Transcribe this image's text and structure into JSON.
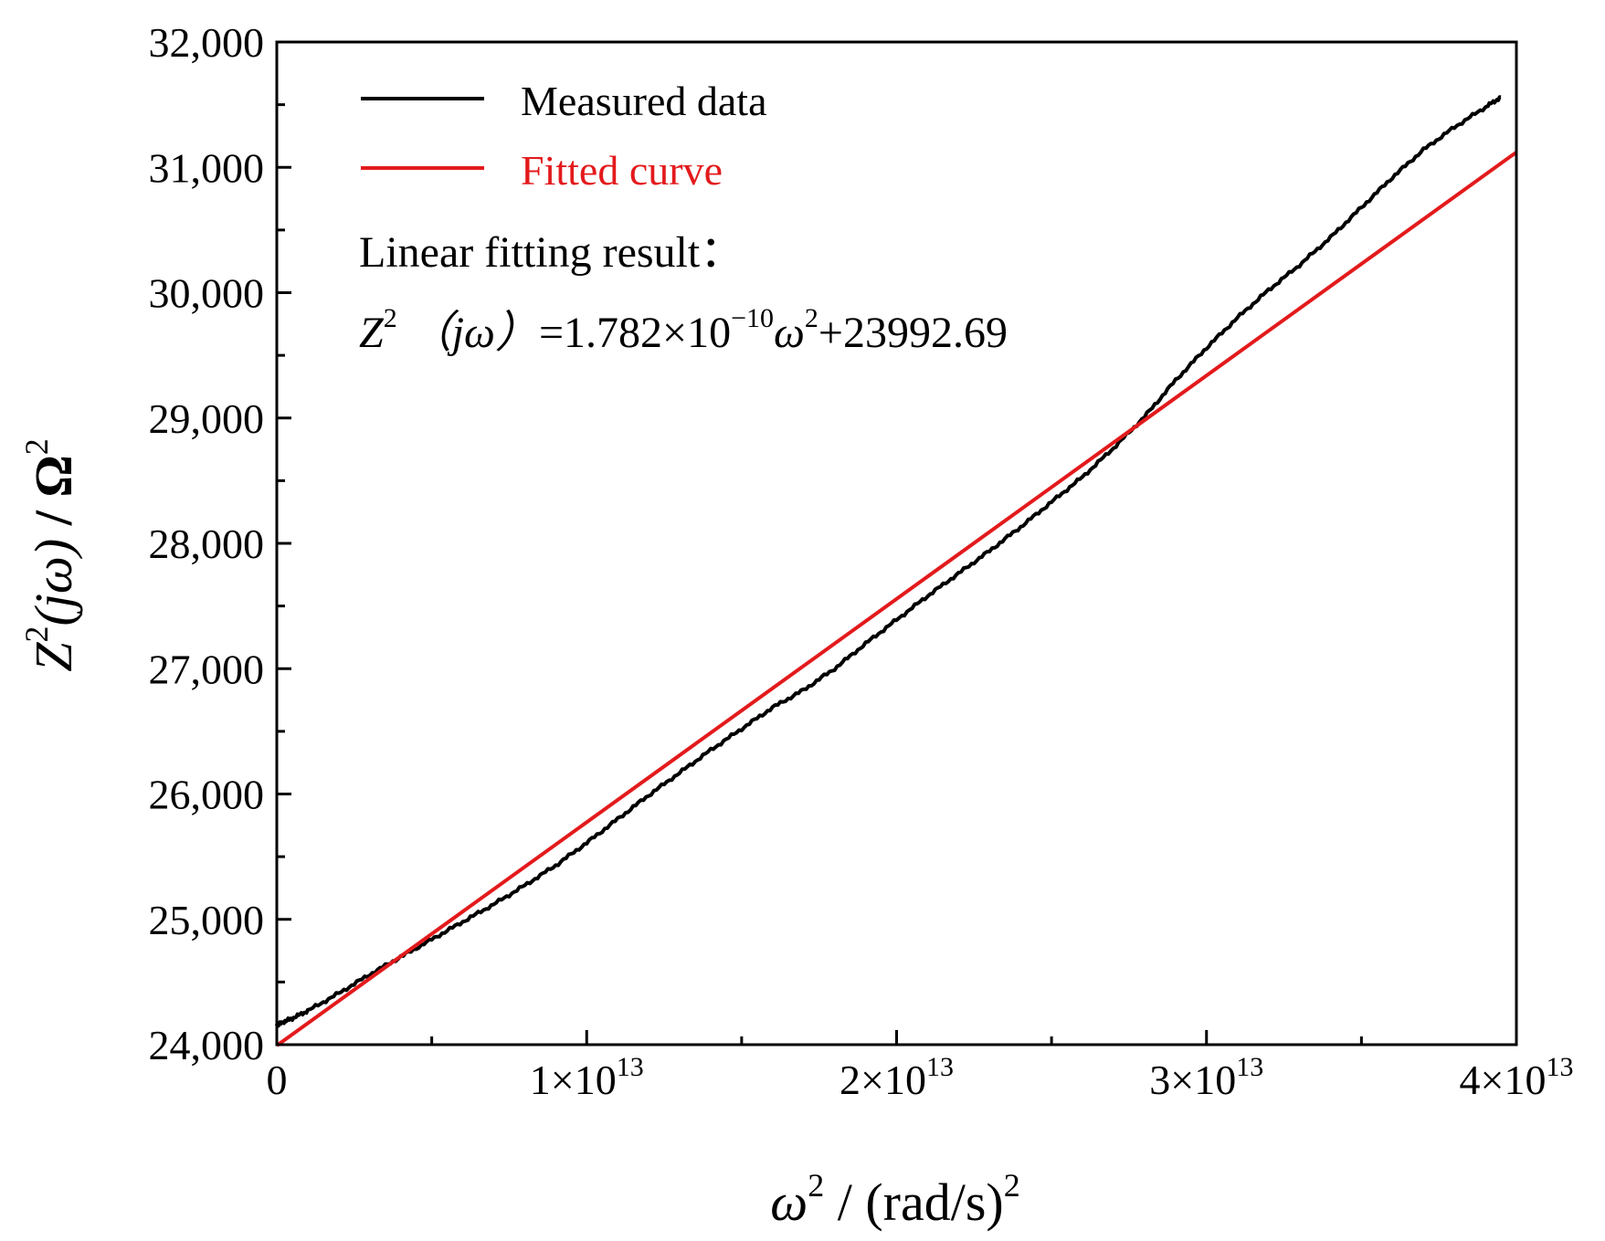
{
  "chart_data": {
    "type": "line",
    "title": "",
    "xlabel": {
      "base": "ω",
      "sup": "2",
      "rest": " / (rad/s)",
      "rest_sup": "2"
    },
    "ylabel": {
      "base": "Z",
      "sup": "2",
      "func": "(jω)",
      "rest": " / Ω",
      "rest_sup": "2"
    },
    "xlim": [
      0,
      40000000000000.0
    ],
    "ylim": [
      24000,
      32000
    ],
    "x_ticks": [
      {
        "value": 0,
        "label": "0",
        "mantissa": "",
        "exp": ""
      },
      {
        "value": 10000000000000.0,
        "label": "1×10^13",
        "mantissa": "1×10",
        "exp": "13"
      },
      {
        "value": 20000000000000.0,
        "label": "2×10^13",
        "mantissa": "2×10",
        "exp": "13"
      },
      {
        "value": 30000000000000.0,
        "label": "3×10^13",
        "mantissa": "3×10",
        "exp": "13"
      },
      {
        "value": 40000000000000.0,
        "label": "4×10^13",
        "mantissa": "4×10",
        "exp": "13"
      }
    ],
    "x_minor_ticks": [
      5000000000000.0,
      15000000000000.0,
      25000000000000.0,
      35000000000000.0
    ],
    "y_ticks": [
      {
        "value": 24000,
        "label": "24,000"
      },
      {
        "value": 25000,
        "label": "25,000"
      },
      {
        "value": 26000,
        "label": "26,000"
      },
      {
        "value": 27000,
        "label": "27,000"
      },
      {
        "value": 28000,
        "label": "28,000"
      },
      {
        "value": 29000,
        "label": "29,000"
      },
      {
        "value": 30000,
        "label": "30,000"
      },
      {
        "value": 31000,
        "label": "31,000"
      },
      {
        "value": 32000,
        "label": "32,000"
      }
    ],
    "y_minor_ticks": [
      24500,
      25500,
      26500,
      27500,
      28500,
      29500,
      30500,
      31500
    ],
    "grid": false,
    "legend": {
      "position": "top-left"
    },
    "series": [
      {
        "name": "Measured data",
        "color": "#000000",
        "x": [
          0,
          100000000000.0,
          500000000000.0,
          1000000000000.0,
          2000000000000.0,
          3000000000000.0,
          4000000000000.0,
          5000000000000.0,
          6000000000000.0,
          7000000000000.0,
          8000000000000.0,
          9000000000000.0,
          10000000000000.0,
          11000000000000.0,
          12000000000000.0,
          13000000000000.0,
          14000000000000.0,
          15000000000000.0,
          16000000000000.0,
          17000000000000.0,
          18000000000000.0,
          19000000000000.0,
          20000000000000.0,
          21000000000000.0,
          22000000000000.0,
          23000000000000.0,
          24000000000000.0,
          25000000000000.0,
          26000000000000.0,
          27000000000000.0,
          28000000000000.0,
          29000000000000.0,
          30000000000000.0,
          31000000000000.0,
          32000000000000.0,
          33000000000000.0,
          34000000000000.0,
          35000000000000.0,
          36000000000000.0,
          37000000000000.0,
          38000000000000.0,
          39000000000000.0,
          39500000000000.0
        ],
        "y": [
          24150,
          24170,
          24210,
          24270,
          24410,
          24560,
          24700,
          24840,
          24980,
          25120,
          25270,
          25430,
          25610,
          25800,
          25990,
          26170,
          26350,
          26520,
          26690,
          26830,
          27000,
          27200,
          27390,
          27580,
          27760,
          27940,
          28130,
          28330,
          28530,
          28760,
          29010,
          29300,
          29560,
          29800,
          30020,
          30220,
          30440,
          30680,
          30920,
          31140,
          31320,
          31480,
          31560
        ]
      },
      {
        "name": "Fitted curve",
        "color": "#e31a1c",
        "x": [
          0,
          40000000000000.0
        ],
        "y": [
          23992.69,
          31120.69
        ]
      }
    ],
    "annotations": {
      "fit_heading": "Linear fitting result：",
      "equation": {
        "z": "Z",
        "z_sup": "2",
        "paren_j": " （j",
        "omega": "ω",
        "close_paren": "）",
        "coef": "=1.782×10",
        "coef_exp": "−10",
        "omega2": "ω",
        "omega2_sup": "2",
        "intercept": "+23992.69"
      }
    }
  }
}
